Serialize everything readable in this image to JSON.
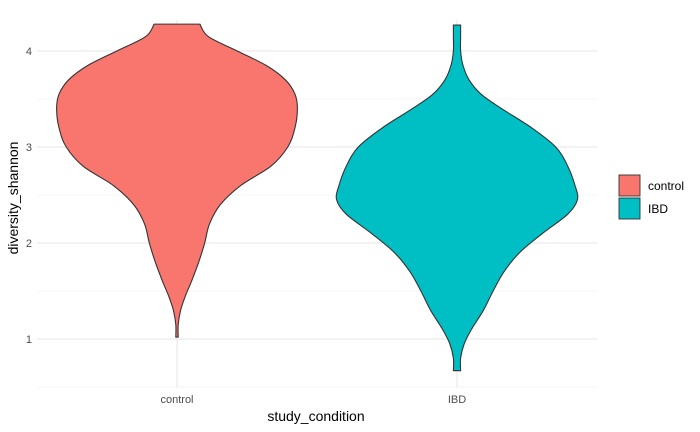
{
  "chart_data": {
    "type": "violin",
    "xlabel": "study_condition",
    "ylabel": "diversity_shannon",
    "categories": [
      "control",
      "IBD"
    ],
    "ylim": [
      0.5,
      4.3
    ],
    "y_ticks": [
      1,
      2,
      3,
      4
    ],
    "grid": true,
    "legend": {
      "position": "right",
      "items": [
        {
          "label": "control",
          "color": "#F8766D"
        },
        {
          "label": "IBD",
          "color": "#00BFC4"
        }
      ]
    },
    "series": [
      {
        "name": "control",
        "color": "#F8766D",
        "y_range": [
          1.02,
          4.28
        ],
        "density_profile": [
          {
            "y": 1.02,
            "w": 0.01
          },
          {
            "y": 1.15,
            "w": 0.01
          },
          {
            "y": 1.3,
            "w": 0.03
          },
          {
            "y": 1.45,
            "w": 0.07
          },
          {
            "y": 1.6,
            "w": 0.12
          },
          {
            "y": 1.8,
            "w": 0.18
          },
          {
            "y": 2.0,
            "w": 0.23
          },
          {
            "y": 2.2,
            "w": 0.27
          },
          {
            "y": 2.4,
            "w": 0.36
          },
          {
            "y": 2.6,
            "w": 0.53
          },
          {
            "y": 2.8,
            "w": 0.78
          },
          {
            "y": 3.0,
            "w": 0.92
          },
          {
            "y": 3.2,
            "w": 0.98
          },
          {
            "y": 3.4,
            "w": 1.0
          },
          {
            "y": 3.55,
            "w": 0.98
          },
          {
            "y": 3.7,
            "w": 0.9
          },
          {
            "y": 3.85,
            "w": 0.74
          },
          {
            "y": 4.0,
            "w": 0.5
          },
          {
            "y": 4.15,
            "w": 0.26
          },
          {
            "y": 4.28,
            "w": 0.19
          }
        ]
      },
      {
        "name": "IBD",
        "color": "#00BFC4",
        "y_range": [
          0.67,
          4.27
        ],
        "density_profile": [
          {
            "y": 0.67,
            "w": 0.03
          },
          {
            "y": 0.8,
            "w": 0.03
          },
          {
            "y": 0.95,
            "w": 0.06
          },
          {
            "y": 1.1,
            "w": 0.12
          },
          {
            "y": 1.3,
            "w": 0.22
          },
          {
            "y": 1.5,
            "w": 0.3
          },
          {
            "y": 1.7,
            "w": 0.39
          },
          {
            "y": 1.9,
            "w": 0.52
          },
          {
            "y": 2.1,
            "w": 0.71
          },
          {
            "y": 2.3,
            "w": 0.92
          },
          {
            "y": 2.45,
            "w": 1.0
          },
          {
            "y": 2.6,
            "w": 0.98
          },
          {
            "y": 2.8,
            "w": 0.92
          },
          {
            "y": 3.0,
            "w": 0.82
          },
          {
            "y": 3.2,
            "w": 0.62
          },
          {
            "y": 3.4,
            "w": 0.37
          },
          {
            "y": 3.55,
            "w": 0.2
          },
          {
            "y": 3.7,
            "w": 0.1
          },
          {
            "y": 3.85,
            "w": 0.05
          },
          {
            "y": 4.0,
            "w": 0.03
          },
          {
            "y": 4.15,
            "w": 0.03
          },
          {
            "y": 4.27,
            "w": 0.03
          }
        ]
      }
    ]
  }
}
